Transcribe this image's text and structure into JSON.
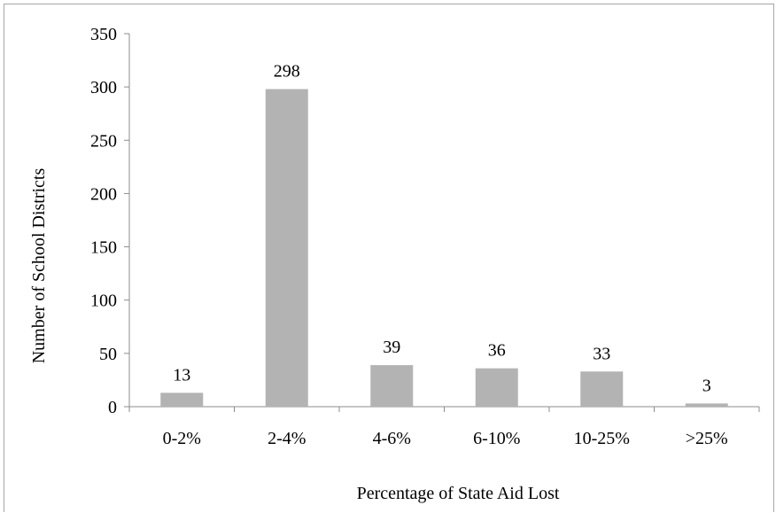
{
  "chart_data": {
    "type": "bar",
    "title": "",
    "xlabel": "Percentage of State Aid Lost",
    "ylabel": "Number of School Districts",
    "categories": [
      "0-2%",
      "2-4%",
      "4-6%",
      "6-10%",
      "10-25%",
      ">25%"
    ],
    "values": [
      13,
      298,
      39,
      36,
      33,
      3
    ],
    "value_labels": [
      "13",
      "298",
      "39",
      "36",
      "33",
      "3"
    ],
    "ylim": [
      0,
      350
    ],
    "yticks": [
      0,
      50,
      100,
      150,
      200,
      250,
      300,
      350
    ],
    "ytick_labels": [
      "0",
      "50",
      "100",
      "150",
      "200",
      "250",
      "300",
      "350"
    ],
    "grid": false,
    "legend": "none",
    "bar_color": "#b3b3b3",
    "axis_color": "#8c8c8c"
  }
}
